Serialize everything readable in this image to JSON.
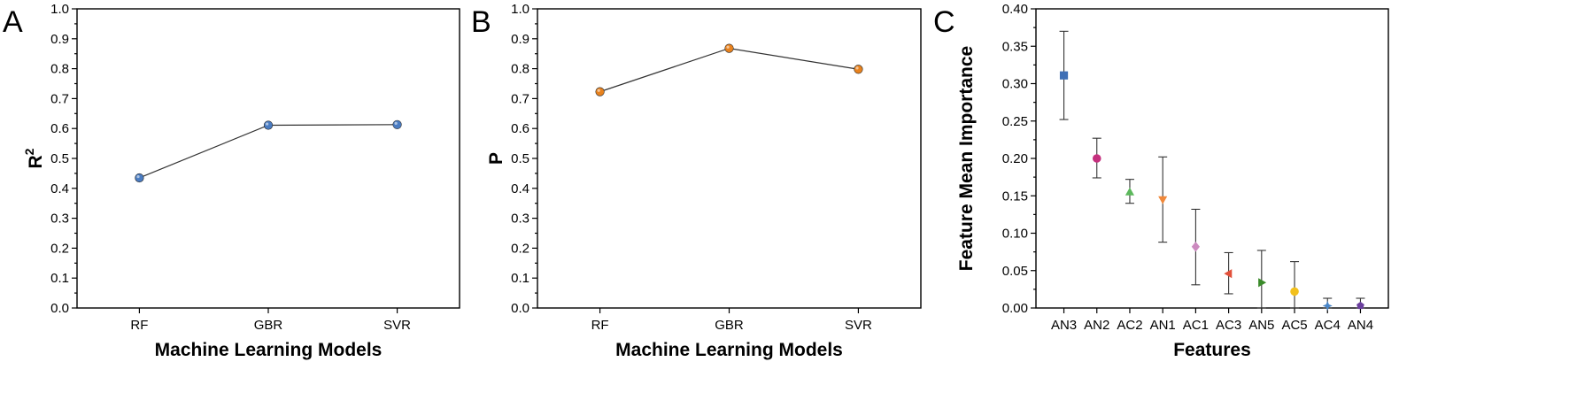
{
  "chart_data": [
    {
      "panel": "A",
      "type": "line",
      "categories": [
        "RF",
        "GBR",
        "SVR"
      ],
      "values": [
        0.435,
        0.611,
        0.613
      ],
      "xlabel": "Machine Learning Models",
      "ylabel": "R",
      "ylabel_sup": "2",
      "ylim": [
        0,
        1.0
      ],
      "yticks": [
        "0.0",
        "0.1",
        "0.2",
        "0.3",
        "0.4",
        "0.5",
        "0.6",
        "0.7",
        "0.8",
        "0.9",
        "1.0"
      ],
      "marker_color": "#4a7cc2",
      "line_color": "#333333",
      "grid": false
    },
    {
      "panel": "B",
      "type": "line",
      "categories": [
        "RF",
        "GBR",
        "SVR"
      ],
      "values": [
        0.723,
        0.868,
        0.798
      ],
      "xlabel": "Machine Learning Models",
      "ylabel": "P",
      "ylim": [
        0,
        1.0
      ],
      "yticks": [
        "0.0",
        "0.1",
        "0.2",
        "0.3",
        "0.4",
        "0.5",
        "0.6",
        "0.7",
        "0.8",
        "0.9",
        "1.0"
      ],
      "marker_color": "#e8821e",
      "line_color": "#333333",
      "grid": false
    },
    {
      "panel": "C",
      "type": "scatter",
      "categories": [
        "AN3",
        "AN2",
        "AC2",
        "AN1",
        "AC1",
        "AC3",
        "AN5",
        "AC5",
        "AC4",
        "AN4"
      ],
      "values": [
        0.311,
        0.2,
        0.155,
        0.145,
        0.082,
        0.046,
        0.034,
        0.022,
        0.003,
        0.003
      ],
      "error_low": [
        0.252,
        0.174,
        0.14,
        0.088,
        0.031,
        0.019,
        0.0,
        0.0,
        0.0,
        0.0
      ],
      "error_high": [
        0.37,
        0.227,
        0.172,
        0.202,
        0.132,
        0.074,
        0.077,
        0.062,
        0.013,
        0.013
      ],
      "markers": [
        "square",
        "circle",
        "triangle-up",
        "triangle-down",
        "diamond",
        "triangle-left",
        "triangle-right",
        "circle",
        "star",
        "pentagon"
      ],
      "colors": [
        "#3f6fb5",
        "#c5307e",
        "#5cb85c",
        "#f0883a",
        "#cc8abf",
        "#e2503a",
        "#3a8a2a",
        "#f2c01c",
        "#4a86c8",
        "#6b3f9e"
      ],
      "xlabel": "Features",
      "ylabel": "Feature Mean Importance",
      "ylim": [
        0,
        0.4
      ],
      "yticks": [
        "0.00",
        "0.05",
        "0.10",
        "0.15",
        "0.20",
        "0.25",
        "0.30",
        "0.35",
        "0.40"
      ],
      "grid": false
    }
  ],
  "panel_letters": [
    "A",
    "B",
    "C"
  ]
}
